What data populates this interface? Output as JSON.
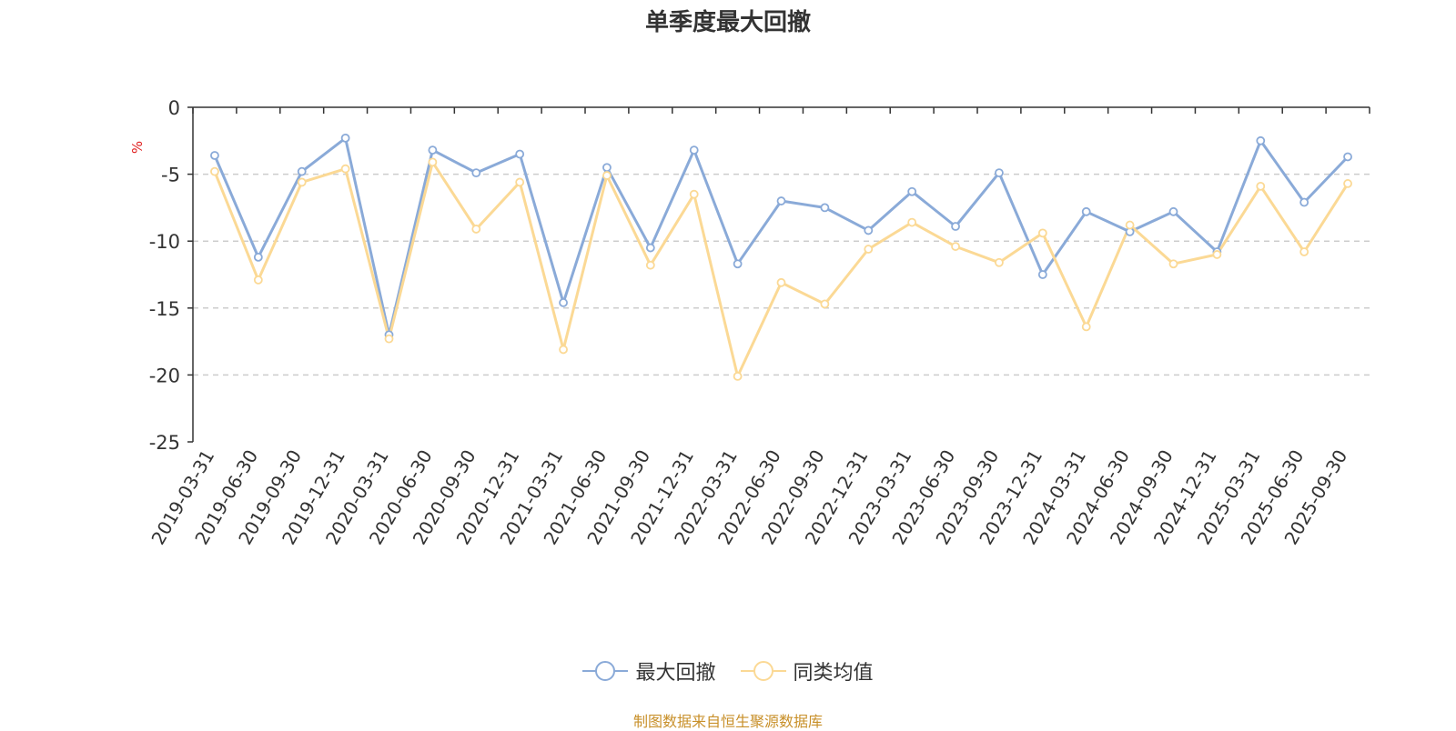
{
  "chart_data": {
    "type": "line",
    "title": "单季度最大回撤",
    "ylabel": "%",
    "ylim": [
      -25,
      0
    ],
    "yticks": [
      0,
      -5,
      -10,
      -15,
      -20,
      -25
    ],
    "grid": true,
    "legend_position": "bottom",
    "categories": [
      "2019-03-31",
      "2019-06-30",
      "2019-09-30",
      "2019-12-31",
      "2020-03-31",
      "2020-06-30",
      "2020-09-30",
      "2020-12-31",
      "2021-03-31",
      "2021-06-30",
      "2021-09-30",
      "2021-12-31",
      "2022-03-31",
      "2022-06-30",
      "2022-09-30",
      "2022-12-31",
      "2023-03-31",
      "2023-06-30",
      "2023-09-30",
      "2023-12-31",
      "2024-03-31",
      "2024-06-30",
      "2024-09-30",
      "2024-12-31",
      "2025-03-31",
      "2025-06-30",
      "2025-09-30"
    ],
    "series": [
      {
        "name": "最大回撤",
        "color": "#8aaad8",
        "values": [
          -3.6,
          -11.2,
          -4.8,
          -2.3,
          -17.0,
          -3.2,
          -4.9,
          -3.5,
          -14.6,
          -4.5,
          -10.5,
          -3.2,
          -11.7,
          -7.0,
          -7.5,
          -9.2,
          -6.3,
          -8.9,
          -4.9,
          -12.5,
          -7.8,
          -9.3,
          -7.8,
          -10.8,
          -2.5,
          -7.1,
          -3.7
        ]
      },
      {
        "name": "同类均值",
        "color": "#fbd995",
        "values": [
          -4.8,
          -12.9,
          -5.6,
          -4.6,
          -17.3,
          -4.1,
          -9.1,
          -5.6,
          -18.1,
          -5.1,
          -11.8,
          -6.5,
          -20.1,
          -13.1,
          -14.7,
          -10.6,
          -8.6,
          -10.4,
          -11.6,
          -9.4,
          -16.4,
          -8.8,
          -11.7,
          -11.0,
          -5.9,
          -10.8,
          -5.7
        ]
      }
    ]
  },
  "source": "制图数据来自恒生聚源数据库"
}
